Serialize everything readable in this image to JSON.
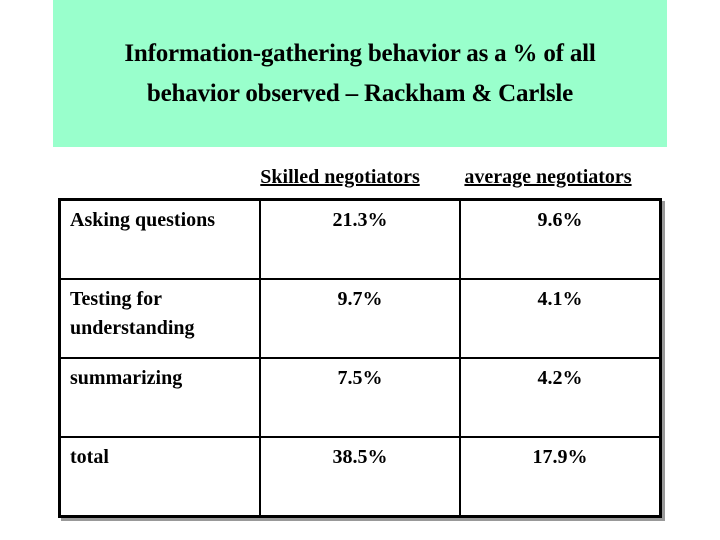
{
  "title": {
    "line1": "Information-gathering behavior as a % of all",
    "line2": "behavior observed – Rackham & Carlsle"
  },
  "table": {
    "headers": {
      "skilled": "Skilled negotiators",
      "average": "average negotiators"
    },
    "rows": [
      {
        "label": "Asking questions",
        "skilled": "21.3%",
        "average": "9.6%"
      },
      {
        "label": "Testing for understanding",
        "skilled": "9.7%",
        "average": "4.1%"
      },
      {
        "label": "summarizing",
        "skilled": "7.5%",
        "average": "4.2%"
      },
      {
        "label": "total",
        "skilled": "38.5%",
        "average": "17.9%"
      }
    ]
  },
  "colors": {
    "title_band": "#99ffcc",
    "text": "#000000",
    "background": "#ffffff",
    "table_border": "#000000"
  }
}
